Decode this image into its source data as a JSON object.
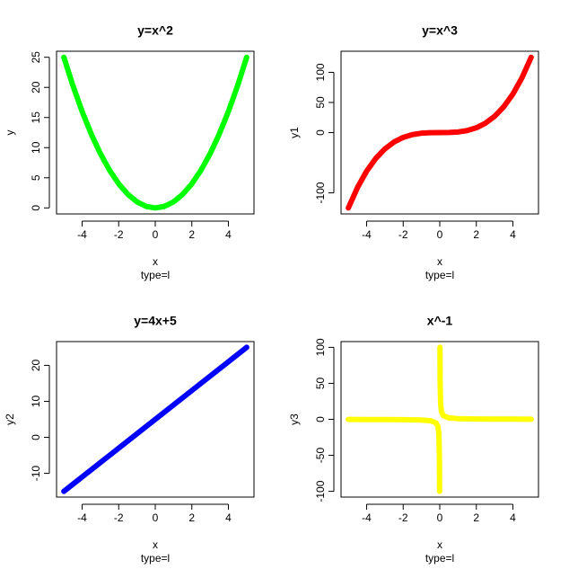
{
  "chart_data": [
    {
      "type": "line",
      "title": "y=x^2",
      "xlabel": "x",
      "ylabel": "y",
      "subtitle": "type=l",
      "color": "#00ff00",
      "x": [
        -5,
        -4.5,
        -4,
        -3.5,
        -3,
        -2.5,
        -2,
        -1.5,
        -1,
        -0.5,
        0,
        0.5,
        1,
        1.5,
        2,
        2.5,
        3,
        3.5,
        4,
        4.5,
        5
      ],
      "values": [
        25,
        20.25,
        16,
        12.25,
        9,
        6.25,
        4,
        2.25,
        1,
        0.25,
        0,
        0.25,
        1,
        2.25,
        4,
        6.25,
        9,
        12.25,
        16,
        20.25,
        25
      ],
      "xlim": [
        -5.4,
        5.4
      ],
      "ylim": [
        -1,
        26
      ],
      "xticks": [
        -4,
        -2,
        0,
        2,
        4
      ],
      "yticks": [
        0,
        5,
        10,
        15,
        20,
        25
      ]
    },
    {
      "type": "line",
      "title": "y=x^3",
      "xlabel": "x",
      "ylabel": "y1",
      "subtitle": "type=l",
      "color": "#ff0000",
      "x": [
        -5,
        -4.5,
        -4,
        -3.5,
        -3,
        -2.5,
        -2,
        -1.5,
        -1,
        -0.5,
        0,
        0.5,
        1,
        1.5,
        2,
        2.5,
        3,
        3.5,
        4,
        4.5,
        5
      ],
      "values": [
        -125,
        -91.125,
        -64,
        -42.875,
        -27,
        -15.625,
        -8,
        -3.375,
        -1,
        -0.125,
        0,
        0.125,
        1,
        3.375,
        8,
        15.625,
        27,
        42.875,
        64,
        91.125,
        125
      ],
      "xlim": [
        -5.4,
        5.4
      ],
      "ylim": [
        -135,
        135
      ],
      "xticks": [
        -4,
        -2,
        0,
        2,
        4
      ],
      "yticks": [
        -100,
        0,
        50,
        100
      ]
    },
    {
      "type": "line",
      "title": "y=4x+5",
      "xlabel": "x",
      "ylabel": "y2",
      "subtitle": "type=l",
      "color": "#0000ff",
      "x": [
        -5,
        -2.5,
        0,
        2.5,
        5
      ],
      "values": [
        -15,
        -5,
        5,
        15,
        25
      ],
      "xlim": [
        -5.4,
        5.4
      ],
      "ylim": [
        -16.6,
        26.6
      ],
      "xticks": [
        -4,
        -2,
        0,
        2,
        4
      ],
      "yticks": [
        -10,
        0,
        10,
        20
      ]
    },
    {
      "type": "line",
      "title": "x^-1",
      "xlabel": "x",
      "ylabel": "y3",
      "subtitle": "type=l",
      "color": "#ffff00",
      "x": [
        -5,
        -4,
        -3,
        -2,
        -1,
        -0.5,
        -0.2,
        -0.1,
        -0.05,
        -0.02,
        -0.01,
        0,
        0.01,
        0.02,
        0.05,
        0.1,
        0.2,
        0.5,
        1,
        2,
        3,
        4,
        5
      ],
      "values": [
        -0.2,
        -0.25,
        -0.3333,
        -0.5,
        -1,
        -2,
        -5,
        -10,
        -20,
        -50,
        -100,
        null,
        100,
        50,
        20,
        10,
        5,
        2,
        1,
        0.5,
        0.3333,
        0.25,
        0.2
      ],
      "xlim": [
        -5.4,
        5.4
      ],
      "ylim": [
        -108,
        108
      ],
      "xticks": [
        -4,
        -2,
        0,
        2,
        4
      ],
      "yticks": [
        -100,
        -50,
        0,
        50,
        100
      ]
    }
  ]
}
